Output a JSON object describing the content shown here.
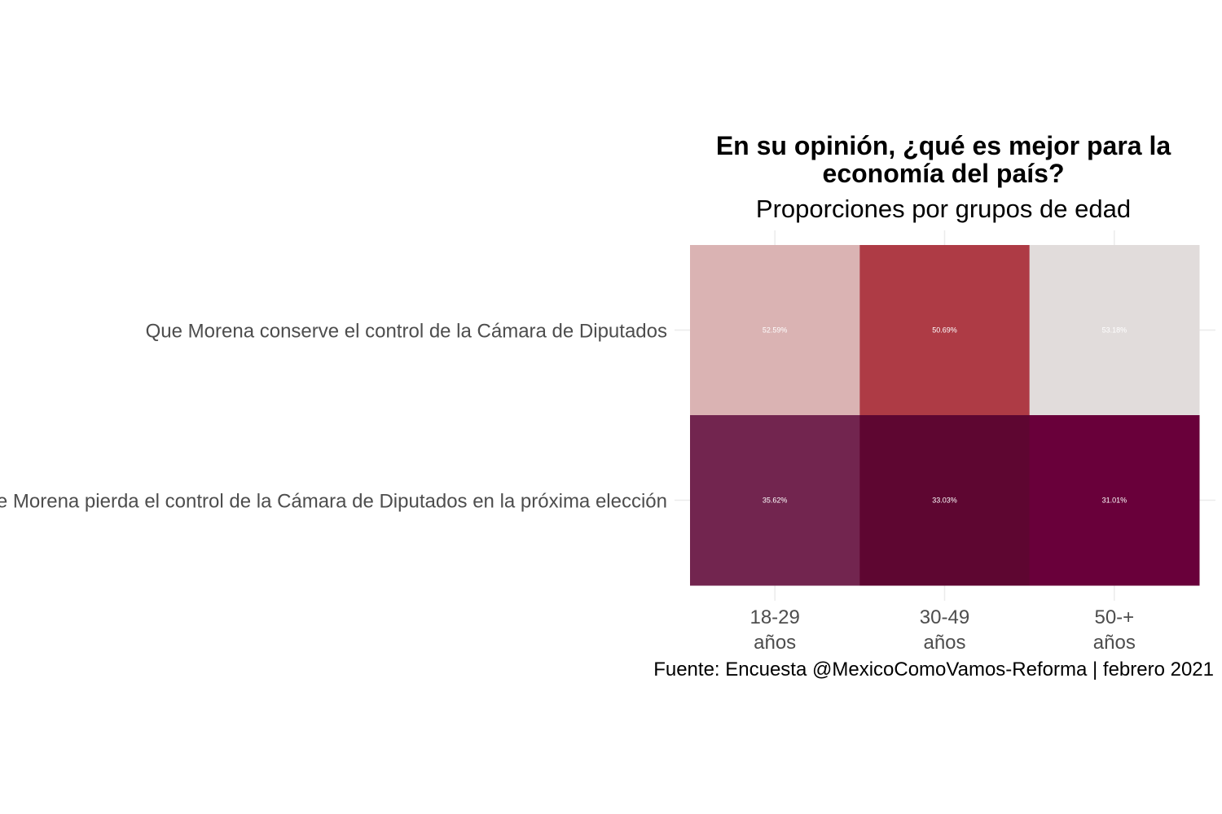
{
  "chart_data": {
    "type": "heatmap",
    "title": "En su opinión, ¿qué es mejor para la economía del país?",
    "title_lines": [
      "En su opinión, ¿qué es mejor para la",
      "economía del país?"
    ],
    "subtitle": "Proporciones por grupos de edad",
    "caption": "Fuente: Encuesta @MexicoComoVamos-Reforma | febrero 2021",
    "x_categories": [
      "18-29 años",
      "30-49 años",
      "50-+ años"
    ],
    "x_category_lines": [
      [
        "18-29",
        "años"
      ],
      [
        "30-49",
        "años"
      ],
      [
        "50-+",
        "años"
      ]
    ],
    "y_categories": [
      "Que Morena conserve el control de la Cámara de Diputados",
      "Que Morena pierda el control de la Cámara de Diputados en la próxima elección"
    ],
    "values": [
      [
        52.59,
        50.69,
        53.18
      ],
      [
        35.62,
        33.03,
        31.01
      ]
    ],
    "value_labels": [
      [
        "52.59%",
        "50.69%",
        "53.18%"
      ],
      [
        "35.62%",
        "33.03%",
        "31.01%"
      ]
    ],
    "cell_colors": [
      [
        "#dab3b3",
        "#ae3b45",
        "#e1dcdb"
      ],
      [
        "#72254f",
        "#5e0631",
        "#69003a"
      ]
    ],
    "grid": true,
    "legend": "none"
  }
}
